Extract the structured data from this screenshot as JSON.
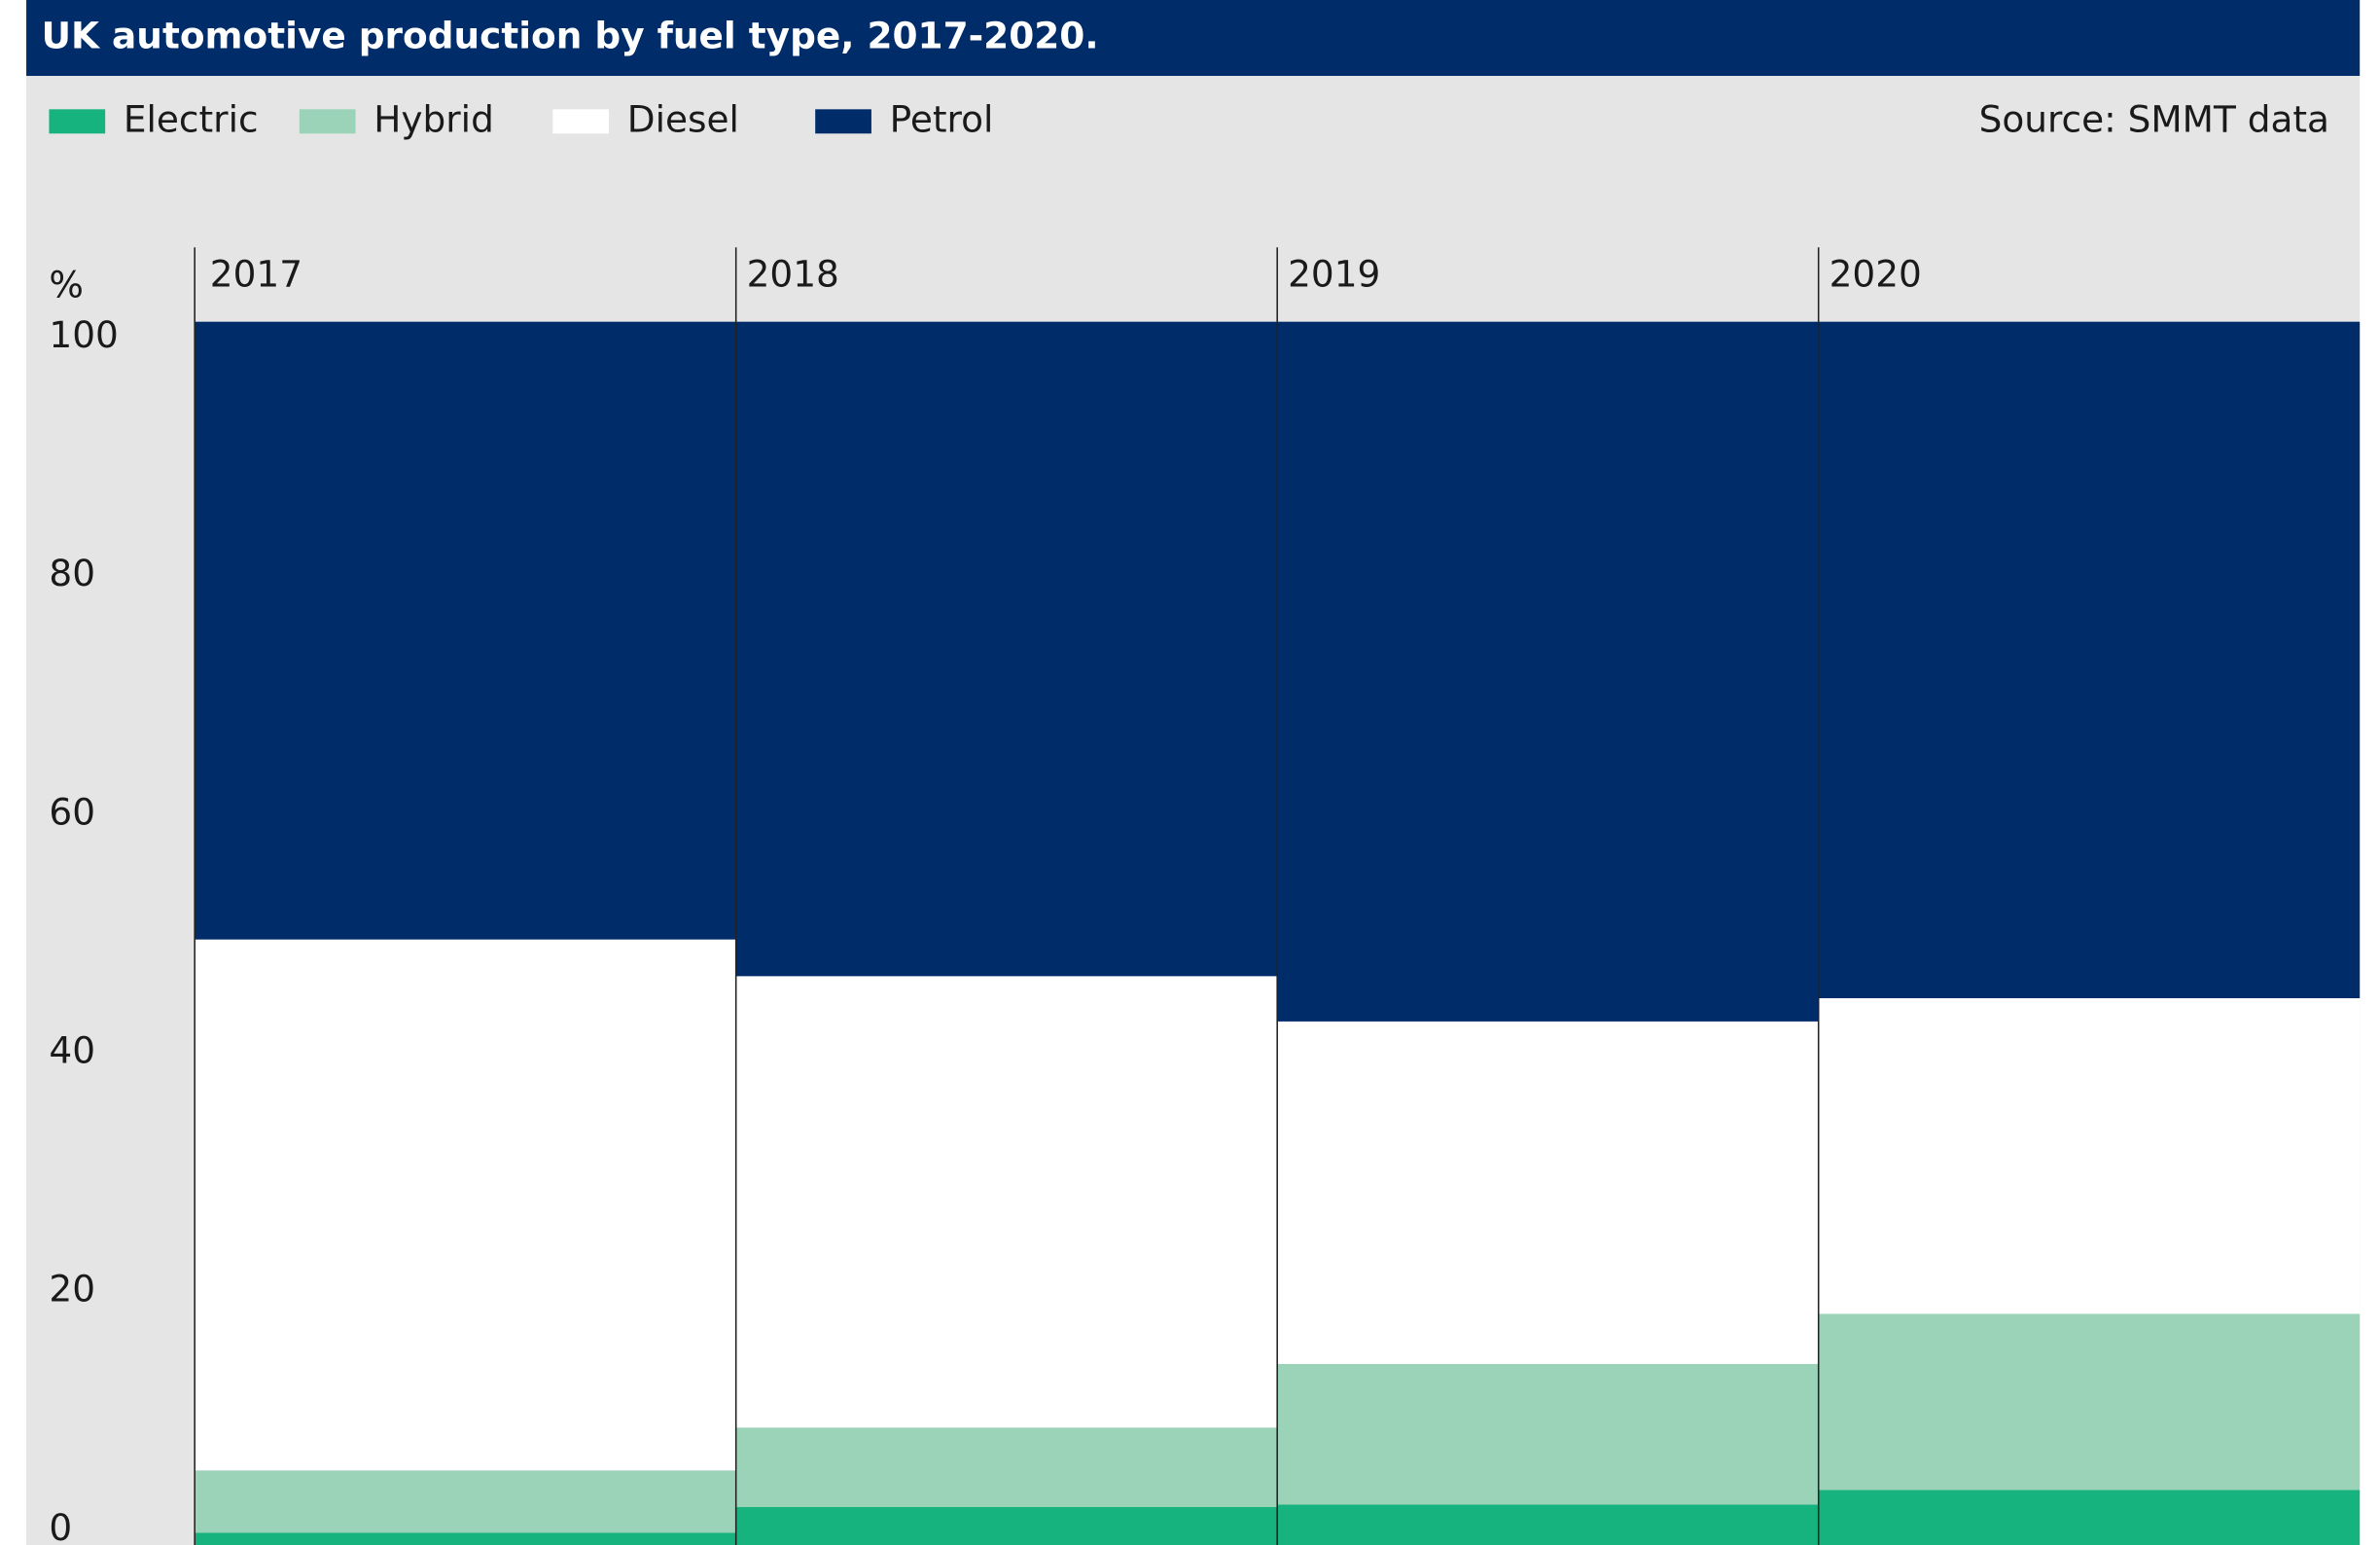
{
  "chart_data": {
    "type": "stacked_bar",
    "title": "UK automotive production by fuel type, 2017-2020.",
    "source": "Source: SMMT data",
    "y_label": "%",
    "categories": [
      "2017",
      "2018",
      "2019",
      "2020"
    ],
    "series": [
      {
        "name": "Electric",
        "color": "#17b37e",
        "values": [
          1.0,
          3.1,
          3.3,
          4.5
        ]
      },
      {
        "name": "Hybrid",
        "color": "#9bd3b9",
        "values": [
          5.1,
          6.5,
          11.5,
          14.4
        ]
      },
      {
        "name": "Diesel",
        "color": "#ffffff",
        "values": [
          43.4,
          36.9,
          28.0,
          25.8
        ]
      },
      {
        "name": "Petrol",
        "color": "#002d6a",
        "values": [
          50.5,
          53.5,
          57.2,
          55.3
        ]
      }
    ],
    "ylim": [
      0,
      100
    ],
    "yticks": [
      0,
      20,
      40,
      60,
      80,
      100
    ]
  }
}
